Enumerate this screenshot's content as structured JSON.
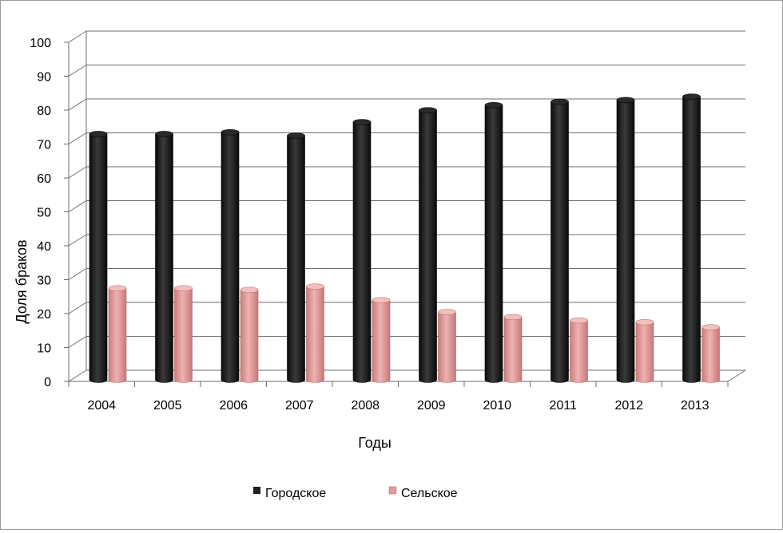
{
  "chart_data": {
    "type": "bar",
    "categories": [
      "2004",
      "2005",
      "2006",
      "2007",
      "2008",
      "2009",
      "2010",
      "2011",
      "2012",
      "2013"
    ],
    "series": [
      {
        "name": "Городское",
        "color": "#1f1f1f",
        "values": [
          72.5,
          72.5,
          73,
          72,
          76,
          79.5,
          81,
          82,
          82.5,
          83.5
        ]
      },
      {
        "name": "Сельское",
        "color": "#e39a9a",
        "values": [
          27,
          27,
          26.5,
          27.5,
          23.5,
          20,
          18.5,
          17.5,
          17,
          15.5
        ]
      }
    ],
    "xlabel": "Годы",
    "ylabel": "Доля браков",
    "ylim": [
      0,
      100
    ],
    "yticks": [
      "0",
      "10",
      "20",
      "30",
      "40",
      "50",
      "60",
      "70",
      "80",
      "90",
      "100"
    ],
    "grid": true,
    "legend_position": "bottom"
  }
}
